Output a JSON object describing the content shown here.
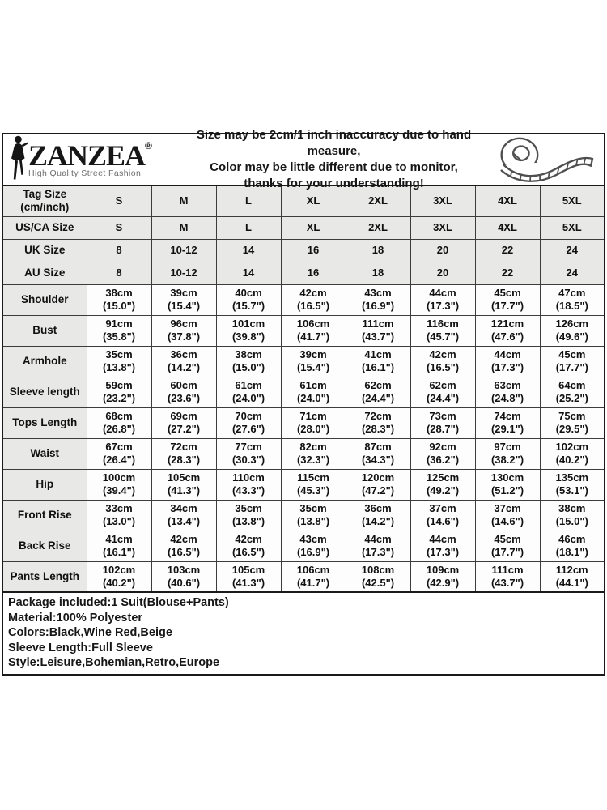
{
  "header": {
    "brand": "ZANZEA",
    "registered_mark": "®",
    "tagline": "High Quality Street Fashion",
    "disclaimer_lines": [
      "Size may be 2cm/1 inch inaccuracy due to hand measure,",
      "Color may be little different due to monitor,",
      "thanks for your understanding!"
    ]
  },
  "size_table": {
    "rows": [
      {
        "name": "tag-size-row",
        "label_lines": [
          "Tag Size",
          "(cm/inch)"
        ],
        "shaded": true,
        "cells": [
          [
            "S"
          ],
          [
            "M"
          ],
          [
            "L"
          ],
          [
            "XL"
          ],
          [
            "2XL"
          ],
          [
            "3XL"
          ],
          [
            "4XL"
          ],
          [
            "5XL"
          ]
        ]
      },
      {
        "name": "us-ca-size-row",
        "label_lines": [
          "US/CA Size"
        ],
        "shaded": true,
        "cells": [
          [
            "S"
          ],
          [
            "M"
          ],
          [
            "L"
          ],
          [
            "XL"
          ],
          [
            "2XL"
          ],
          [
            "3XL"
          ],
          [
            "4XL"
          ],
          [
            "5XL"
          ]
        ]
      },
      {
        "name": "uk-size-row",
        "label_lines": [
          "UK Size"
        ],
        "shaded": true,
        "cells": [
          [
            "8"
          ],
          [
            "10-12"
          ],
          [
            "14"
          ],
          [
            "16"
          ],
          [
            "18"
          ],
          [
            "20"
          ],
          [
            "22"
          ],
          [
            "24"
          ]
        ]
      },
      {
        "name": "au-size-row",
        "label_lines": [
          "AU Size"
        ],
        "shaded": true,
        "cells": [
          [
            "8"
          ],
          [
            "10-12"
          ],
          [
            "14"
          ],
          [
            "16"
          ],
          [
            "18"
          ],
          [
            "20"
          ],
          [
            "22"
          ],
          [
            "24"
          ]
        ]
      },
      {
        "name": "shoulder-row",
        "label_lines": [
          "Shoulder"
        ],
        "shaded": false,
        "cells": [
          [
            "38cm",
            "(15.0\")"
          ],
          [
            "39cm",
            "(15.4\")"
          ],
          [
            "40cm",
            "(15.7\")"
          ],
          [
            "42cm",
            "(16.5\")"
          ],
          [
            "43cm",
            "(16.9\")"
          ],
          [
            "44cm",
            "(17.3\")"
          ],
          [
            "45cm",
            "(17.7\")"
          ],
          [
            "47cm",
            "(18.5\")"
          ]
        ]
      },
      {
        "name": "bust-row",
        "label_lines": [
          "Bust"
        ],
        "shaded": false,
        "cells": [
          [
            "91cm",
            "(35.8\")"
          ],
          [
            "96cm",
            "(37.8\")"
          ],
          [
            "101cm",
            "(39.8\")"
          ],
          [
            "106cm",
            "(41.7\")"
          ],
          [
            "111cm",
            "(43.7\")"
          ],
          [
            "116cm",
            "(45.7\")"
          ],
          [
            "121cm",
            "(47.6\")"
          ],
          [
            "126cm",
            "(49.6\")"
          ]
        ]
      },
      {
        "name": "armhole-row",
        "label_lines": [
          "Armhole"
        ],
        "shaded": false,
        "cells": [
          [
            "35cm",
            "(13.8\")"
          ],
          [
            "36cm",
            "(14.2\")"
          ],
          [
            "38cm",
            "(15.0\")"
          ],
          [
            "39cm",
            "(15.4\")"
          ],
          [
            "41cm",
            "(16.1\")"
          ],
          [
            "42cm",
            "(16.5\")"
          ],
          [
            "44cm",
            "(17.3\")"
          ],
          [
            "45cm",
            "(17.7\")"
          ]
        ]
      },
      {
        "name": "sleeve-length-row",
        "label_lines": [
          "Sleeve length"
        ],
        "shaded": false,
        "cells": [
          [
            "59cm",
            "(23.2\")"
          ],
          [
            "60cm",
            "(23.6\")"
          ],
          [
            "61cm",
            "(24.0\")"
          ],
          [
            "61cm",
            "(24.0\")"
          ],
          [
            "62cm",
            "(24.4\")"
          ],
          [
            "62cm",
            "(24.4\")"
          ],
          [
            "63cm",
            "(24.8\")"
          ],
          [
            "64cm",
            "(25.2\")"
          ]
        ]
      },
      {
        "name": "tops-length-row",
        "label_lines": [
          "Tops Length"
        ],
        "shaded": false,
        "cells": [
          [
            "68cm",
            "(26.8\")"
          ],
          [
            "69cm",
            "(27.2\")"
          ],
          [
            "70cm",
            "(27.6\")"
          ],
          [
            "71cm",
            "(28.0\")"
          ],
          [
            "72cm",
            "(28.3\")"
          ],
          [
            "73cm",
            "(28.7\")"
          ],
          [
            "74cm",
            "(29.1\")"
          ],
          [
            "75cm",
            "(29.5\")"
          ]
        ]
      },
      {
        "name": "waist-row",
        "label_lines": [
          "Waist"
        ],
        "shaded": false,
        "cells": [
          [
            "67cm",
            "(26.4\")"
          ],
          [
            "72cm",
            "(28.3\")"
          ],
          [
            "77cm",
            "(30.3\")"
          ],
          [
            "82cm",
            "(32.3\")"
          ],
          [
            "87cm",
            "(34.3\")"
          ],
          [
            "92cm",
            "(36.2\")"
          ],
          [
            "97cm",
            "(38.2\")"
          ],
          [
            "102cm",
            "(40.2\")"
          ]
        ]
      },
      {
        "name": "hip-row",
        "label_lines": [
          "Hip"
        ],
        "shaded": false,
        "cells": [
          [
            "100cm",
            "(39.4\")"
          ],
          [
            "105cm",
            "(41.3\")"
          ],
          [
            "110cm",
            "(43.3\")"
          ],
          [
            "115cm",
            "(45.3\")"
          ],
          [
            "120cm",
            "(47.2\")"
          ],
          [
            "125cm",
            "(49.2\")"
          ],
          [
            "130cm",
            "(51.2\")"
          ],
          [
            "135cm",
            "(53.1\")"
          ]
        ]
      },
      {
        "name": "front-rise-row",
        "label_lines": [
          "Front Rise"
        ],
        "shaded": false,
        "cells": [
          [
            "33cm",
            "(13.0\")"
          ],
          [
            "34cm",
            "(13.4\")"
          ],
          [
            "35cm",
            "(13.8\")"
          ],
          [
            "35cm",
            "(13.8\")"
          ],
          [
            "36cm",
            "(14.2\")"
          ],
          [
            "37cm",
            "(14.6\")"
          ],
          [
            "37cm",
            "(14.6\")"
          ],
          [
            "38cm",
            "(15.0\")"
          ]
        ]
      },
      {
        "name": "back-rise-row",
        "label_lines": [
          "Back Rise"
        ],
        "shaded": false,
        "cells": [
          [
            "41cm",
            "(16.1\")"
          ],
          [
            "42cm",
            "(16.5\")"
          ],
          [
            "42cm",
            "(16.5\")"
          ],
          [
            "43cm",
            "(16.9\")"
          ],
          [
            "44cm",
            "(17.3\")"
          ],
          [
            "44cm",
            "(17.3\")"
          ],
          [
            "45cm",
            "(17.7\")"
          ],
          [
            "46cm",
            "(18.1\")"
          ]
        ]
      },
      {
        "name": "pants-length-row",
        "label_lines": [
          "Pants Length"
        ],
        "shaded": false,
        "cells": [
          [
            "102cm",
            "(40.2\")"
          ],
          [
            "103cm",
            "(40.6\")"
          ],
          [
            "105cm",
            "(41.3\")"
          ],
          [
            "106cm",
            "(41.7\")"
          ],
          [
            "108cm",
            "(42.5\")"
          ],
          [
            "109cm",
            "(42.9\")"
          ],
          [
            "111cm",
            "(43.7\")"
          ],
          [
            "112cm",
            "(44.1\")"
          ]
        ]
      }
    ]
  },
  "product_info": {
    "lines": [
      "Package included:1 Suit(Blouse+Pants)",
      "Material:100% Polyester",
      "Colors:Black,Wine Red,Beige",
      "Sleeve Length:Full Sleeve",
      "Style:Leisure,Bohemian,Retro,Europe"
    ]
  },
  "colors": {
    "table_shaded_bg": "#e8e8e6",
    "border_dark": "#1a1a1a",
    "grid_line": "#3c3c3c",
    "tagline_gray": "#6b6b6b",
    "icon_gray": "#4f4f4f"
  }
}
